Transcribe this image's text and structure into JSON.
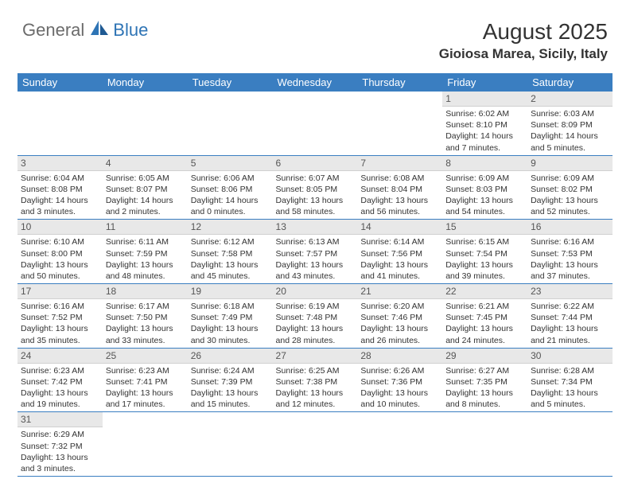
{
  "brand": {
    "textGray": "General",
    "textBlue": "Blue"
  },
  "title": "August 2025",
  "location": "Gioiosa Marea, Sicily, Italy",
  "colors": {
    "headerBg": "#3a7ec1",
    "headerText": "#ffffff",
    "dayNumBg": "#e8e8e8",
    "dayNumText": "#555555",
    "bodyText": "#333333",
    "logoGray": "#6b6b6b",
    "logoBlue": "#2e74b5",
    "cellBorder": "#3a7ec1"
  },
  "fonts": {
    "title_size": 28,
    "location_size": 17,
    "weekday_size": 13,
    "daynum_size": 12,
    "content_size": 10.5
  },
  "weekdays": [
    "Sunday",
    "Monday",
    "Tuesday",
    "Wednesday",
    "Thursday",
    "Friday",
    "Saturday"
  ],
  "weeks": [
    [
      null,
      null,
      null,
      null,
      null,
      {
        "n": "1",
        "sr": "6:02 AM",
        "ss": "8:10 PM",
        "dl": "14 hours and 7 minutes."
      },
      {
        "n": "2",
        "sr": "6:03 AM",
        "ss": "8:09 PM",
        "dl": "14 hours and 5 minutes."
      }
    ],
    [
      {
        "n": "3",
        "sr": "6:04 AM",
        "ss": "8:08 PM",
        "dl": "14 hours and 3 minutes."
      },
      {
        "n": "4",
        "sr": "6:05 AM",
        "ss": "8:07 PM",
        "dl": "14 hours and 2 minutes."
      },
      {
        "n": "5",
        "sr": "6:06 AM",
        "ss": "8:06 PM",
        "dl": "14 hours and 0 minutes."
      },
      {
        "n": "6",
        "sr": "6:07 AM",
        "ss": "8:05 PM",
        "dl": "13 hours and 58 minutes."
      },
      {
        "n": "7",
        "sr": "6:08 AM",
        "ss": "8:04 PM",
        "dl": "13 hours and 56 minutes."
      },
      {
        "n": "8",
        "sr": "6:09 AM",
        "ss": "8:03 PM",
        "dl": "13 hours and 54 minutes."
      },
      {
        "n": "9",
        "sr": "6:09 AM",
        "ss": "8:02 PM",
        "dl": "13 hours and 52 minutes."
      }
    ],
    [
      {
        "n": "10",
        "sr": "6:10 AM",
        "ss": "8:00 PM",
        "dl": "13 hours and 50 minutes."
      },
      {
        "n": "11",
        "sr": "6:11 AM",
        "ss": "7:59 PM",
        "dl": "13 hours and 48 minutes."
      },
      {
        "n": "12",
        "sr": "6:12 AM",
        "ss": "7:58 PM",
        "dl": "13 hours and 45 minutes."
      },
      {
        "n": "13",
        "sr": "6:13 AM",
        "ss": "7:57 PM",
        "dl": "13 hours and 43 minutes."
      },
      {
        "n": "14",
        "sr": "6:14 AM",
        "ss": "7:56 PM",
        "dl": "13 hours and 41 minutes."
      },
      {
        "n": "15",
        "sr": "6:15 AM",
        "ss": "7:54 PM",
        "dl": "13 hours and 39 minutes."
      },
      {
        "n": "16",
        "sr": "6:16 AM",
        "ss": "7:53 PM",
        "dl": "13 hours and 37 minutes."
      }
    ],
    [
      {
        "n": "17",
        "sr": "6:16 AM",
        "ss": "7:52 PM",
        "dl": "13 hours and 35 minutes."
      },
      {
        "n": "18",
        "sr": "6:17 AM",
        "ss": "7:50 PM",
        "dl": "13 hours and 33 minutes."
      },
      {
        "n": "19",
        "sr": "6:18 AM",
        "ss": "7:49 PM",
        "dl": "13 hours and 30 minutes."
      },
      {
        "n": "20",
        "sr": "6:19 AM",
        "ss": "7:48 PM",
        "dl": "13 hours and 28 minutes."
      },
      {
        "n": "21",
        "sr": "6:20 AM",
        "ss": "7:46 PM",
        "dl": "13 hours and 26 minutes."
      },
      {
        "n": "22",
        "sr": "6:21 AM",
        "ss": "7:45 PM",
        "dl": "13 hours and 24 minutes."
      },
      {
        "n": "23",
        "sr": "6:22 AM",
        "ss": "7:44 PM",
        "dl": "13 hours and 21 minutes."
      }
    ],
    [
      {
        "n": "24",
        "sr": "6:23 AM",
        "ss": "7:42 PM",
        "dl": "13 hours and 19 minutes."
      },
      {
        "n": "25",
        "sr": "6:23 AM",
        "ss": "7:41 PM",
        "dl": "13 hours and 17 minutes."
      },
      {
        "n": "26",
        "sr": "6:24 AM",
        "ss": "7:39 PM",
        "dl": "13 hours and 15 minutes."
      },
      {
        "n": "27",
        "sr": "6:25 AM",
        "ss": "7:38 PM",
        "dl": "13 hours and 12 minutes."
      },
      {
        "n": "28",
        "sr": "6:26 AM",
        "ss": "7:36 PM",
        "dl": "13 hours and 10 minutes."
      },
      {
        "n": "29",
        "sr": "6:27 AM",
        "ss": "7:35 PM",
        "dl": "13 hours and 8 minutes."
      },
      {
        "n": "30",
        "sr": "6:28 AM",
        "ss": "7:34 PM",
        "dl": "13 hours and 5 minutes."
      }
    ],
    [
      {
        "n": "31",
        "sr": "6:29 AM",
        "ss": "7:32 PM",
        "dl": "13 hours and 3 minutes."
      },
      null,
      null,
      null,
      null,
      null,
      null
    ]
  ],
  "labels": {
    "sunrise": "Sunrise:",
    "sunset": "Sunset:",
    "daylight": "Daylight:"
  }
}
